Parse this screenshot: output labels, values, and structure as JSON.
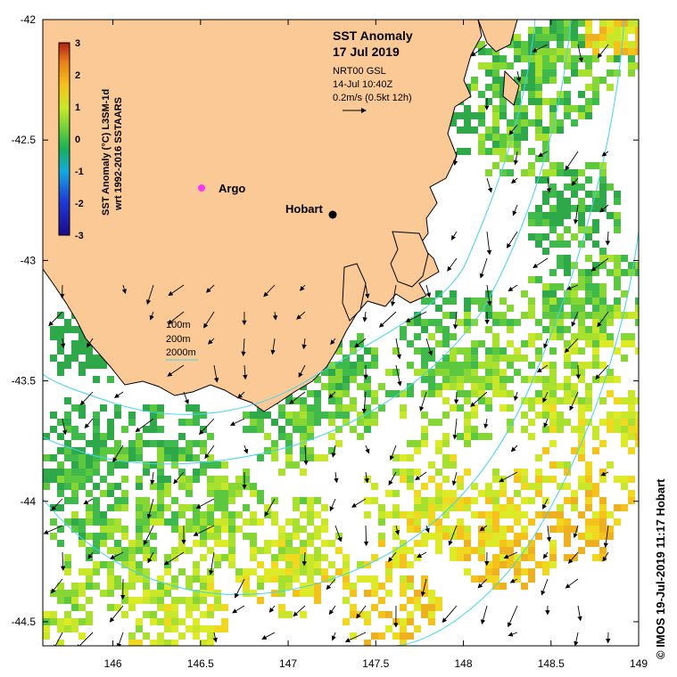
{
  "title": {
    "line1": "SST Anomaly",
    "line2": "17 Jul 2019"
  },
  "current_info": {
    "source": "NRT00 GSL",
    "time": "14-Jul 10:40Z",
    "scale": "0.2m/s (0.5kt 12h)"
  },
  "colorbar": {
    "label_line1": "SST Anomaly (°C) L3SM-1d",
    "label_line2": "wrt 1992-2016 SSTAARS",
    "ticks": [
      "3",
      "2",
      "1",
      "0",
      "-1",
      "-2",
      "-3"
    ],
    "colors": [
      "#1a0a8a",
      "#1f3bd6",
      "#14a8e0",
      "#19b05a",
      "#6ccf3a",
      "#c8e62a",
      "#f5c21c",
      "#e9801a",
      "#b21c14"
    ]
  },
  "depth_legend": [
    "100m",
    "200m",
    "2000m"
  ],
  "places": {
    "hobart": "Hobart",
    "argo": "Argo"
  },
  "axes": {
    "lon_ticks": [
      "146",
      "146.5",
      "147",
      "147.5",
      "148",
      "148.5",
      "149"
    ],
    "lat_ticks": [
      "-42",
      "-42.5",
      "-43",
      "-43.5",
      "-44",
      "-44.5"
    ]
  },
  "credit": "© IMOS 19-Jul-2019 11:17 Hobart",
  "colors": {
    "land": "#fac996",
    "isobath": "#3fd4ee",
    "argo": "#ff33ff"
  }
}
